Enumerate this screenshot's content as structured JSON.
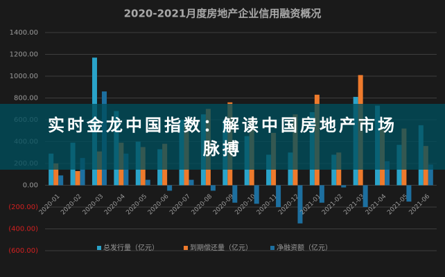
{
  "chart_data": {
    "type": "bar",
    "title": "2020-2021月度房地产企业信用融资概况",
    "categories": [
      "2020-01",
      "2020-02",
      "2020-03",
      "2020-04",
      "2020-05",
      "2020-06",
      "2020-07",
      "2020-08",
      "2020-09",
      "2020-10",
      "2020-11",
      "2020-12",
      "2021-01",
      "2021-02",
      "2021-03",
      "2021-04",
      "2021-05",
      "2021-06"
    ],
    "series": [
      {
        "name": "总发行量（亿元）",
        "color": "#2aa3c9",
        "values": [
          290,
          390,
          1170,
          680,
          400,
          330,
          600,
          650,
          600,
          450,
          280,
          300,
          670,
          280,
          810,
          730,
          370,
          550
        ]
      },
      {
        "name": "到期偿还量（亿元）",
        "color": "#ee7a2c",
        "values": [
          200,
          130,
          310,
          390,
          350,
          380,
          550,
          700,
          760,
          620,
          480,
          650,
          830,
          300,
          1010,
          510,
          520,
          360
        ]
      },
      {
        "name": "净融资额（亿元）",
        "color": "#1d6f9f",
        "values": [
          90,
          250,
          860,
          290,
          50,
          -50,
          50,
          -50,
          -160,
          -170,
          -200,
          -350,
          -160,
          -20,
          -200,
          220,
          -150,
          190
        ]
      }
    ],
    "ylim": [
      -600,
      1400
    ],
    "yticks": [
      {
        "value": -600,
        "label": "(600.00)"
      },
      {
        "value": -400,
        "label": "(400.00)"
      },
      {
        "value": -200,
        "label": "(200.00)"
      },
      {
        "value": 0,
        "label": "0.00"
      },
      {
        "value": 200,
        "label": "200.00"
      },
      {
        "value": 400,
        "label": "400.00"
      },
      {
        "value": 600,
        "label": "600.00"
      },
      {
        "value": 800,
        "label": "800.00"
      },
      {
        "value": 1000,
        "label": "1000.00"
      },
      {
        "value": 1200,
        "label": "1200.00"
      },
      {
        "value": 1400,
        "label": "1400.00"
      }
    ],
    "grid": true,
    "legend": "bottom"
  },
  "banner": {
    "text": "实时金龙中国指数：解读中国房地产市场脉搏"
  }
}
